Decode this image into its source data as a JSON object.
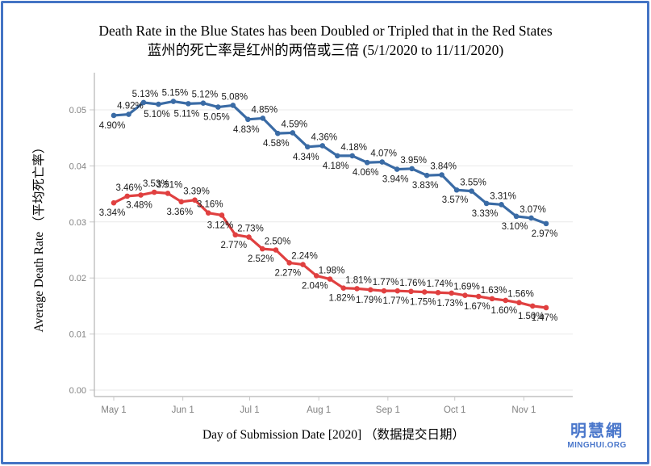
{
  "frame": {
    "border_color": "#4474c4",
    "background": "#ffffff"
  },
  "title": {
    "line1": "Death Rate in the Blue States has been Doubled or Tripled that in the Red States",
    "line2": "蓝州的死亡率是红州的两倍或三倍  (5/1/2020 to 11/11/2020)"
  },
  "axes": {
    "x_title": "Day of Submission Date [2020] （数据提交日期）",
    "y_title": "Average Death Rate （平均死亡率）"
  },
  "watermark": {
    "name": "明慧網",
    "site": "MINGHUI.ORG",
    "color": "#4a77cb"
  },
  "chart_data": {
    "type": "line",
    "title": "Death Rate in the Blue States has been Doubled or Tripled that in the Red States 蓝州的死亡率是红州的两倍或三倍 (5/1/2020 to 11/11/2020)",
    "date_range": "5/1/2020 to 11/11/2020",
    "xlabel": "Day of Submission Date [2020] （数据提交日期）",
    "ylabel": "Average Death Rate （平均死亡率）",
    "x_tick_labels": [
      "May 1",
      "Jun 1",
      "Jul 1",
      "Aug 1",
      "Sep 1",
      "Oct 1",
      "Nov 1"
    ],
    "y_tick_labels": [
      "0.00",
      "0.01",
      "0.02",
      "0.03",
      "0.04",
      "0.05"
    ],
    "ylim": [
      0,
      0.055
    ],
    "grid": "horizontal",
    "legend": "none",
    "label_format": "percent",
    "colors": {
      "grid": "#e9e9e9",
      "axis": "#b4b4b4",
      "tick": "#c8c8c8",
      "tick_text": "#828282",
      "label_text": "#1b1b1b"
    },
    "series": [
      {
        "name": "Blue States",
        "color": "#3a6ba5",
        "values_percent": [
          4.9,
          4.92,
          5.13,
          5.1,
          5.15,
          5.11,
          5.12,
          5.05,
          5.08,
          4.83,
          4.85,
          4.58,
          4.59,
          4.34,
          4.36,
          4.18,
          4.18,
          4.06,
          4.07,
          3.94,
          3.95,
          3.83,
          3.84,
          3.57,
          3.55,
          3.33,
          3.31,
          3.1,
          3.07,
          2.97
        ],
        "label_side": [
          "below",
          "above",
          "above",
          "below",
          "above",
          "below",
          "above",
          "below",
          "above",
          "below",
          "above",
          "below",
          "above",
          "below",
          "above",
          "below",
          "above",
          "below",
          "above",
          "below",
          "above",
          "below",
          "above",
          "below",
          "above",
          "below",
          "above",
          "below",
          "above",
          "below"
        ]
      },
      {
        "name": "Red States",
        "color": "#e04040",
        "values_percent": [
          3.34,
          3.46,
          3.48,
          3.53,
          3.51,
          3.36,
          3.39,
          3.16,
          3.12,
          2.77,
          2.73,
          2.52,
          2.5,
          2.27,
          2.24,
          2.04,
          1.98,
          1.82,
          1.81,
          1.79,
          1.77,
          1.77,
          1.76,
          1.75,
          1.74,
          1.73,
          1.69,
          1.67,
          1.63,
          1.6,
          1.56,
          1.5,
          1.47
        ],
        "label_side": [
          "below",
          "above",
          "below",
          "above",
          "above",
          "below",
          "above",
          "above",
          "below",
          "below",
          "above",
          "below",
          "above",
          "below",
          "above",
          "below",
          "above",
          "below",
          "above",
          "below",
          "above",
          "below",
          "above",
          "below",
          "above",
          "below",
          "above",
          "below",
          "above",
          "below",
          "above",
          "below",
          "below"
        ]
      }
    ]
  }
}
